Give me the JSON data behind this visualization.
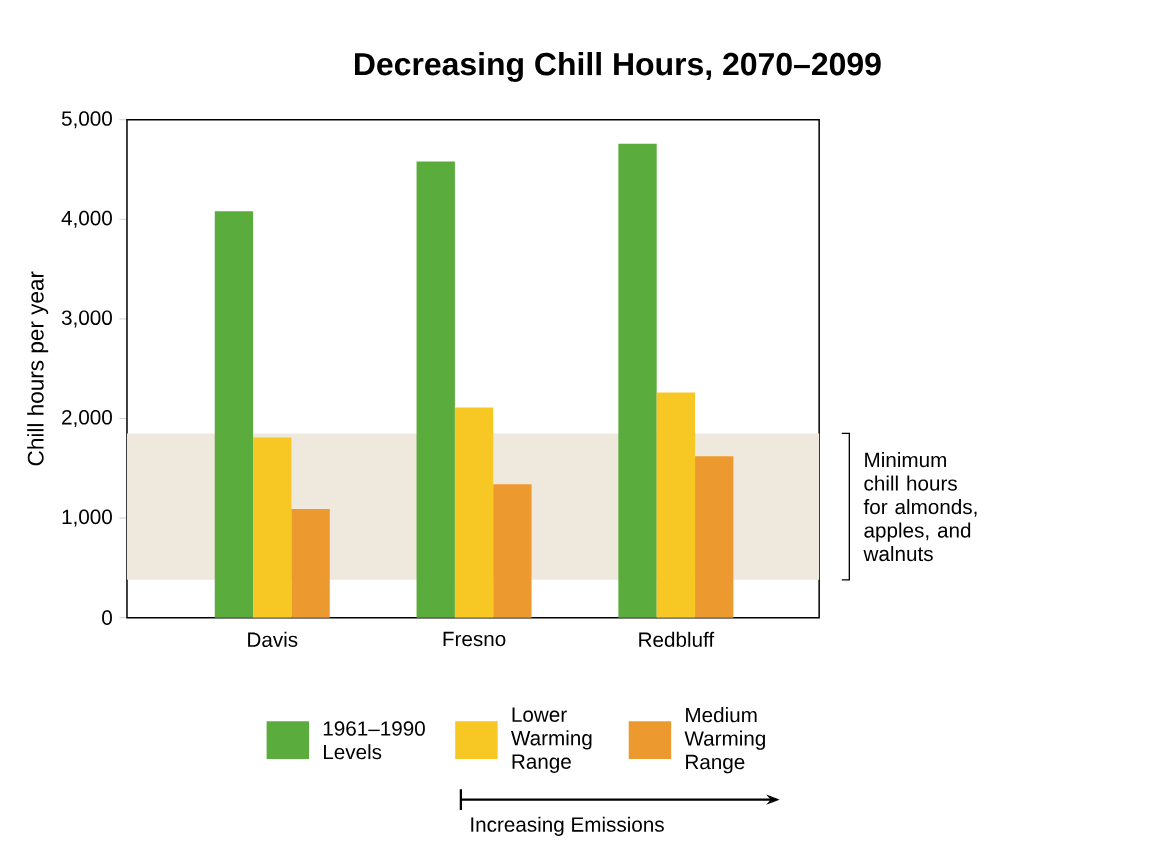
{
  "chart_data": {
    "type": "bar",
    "title": "Decreasing Chill Hours, 2070–2099",
    "ylabel": "Chill hours per year",
    "categories": [
      "Davis",
      "Fresno",
      "Redbluff"
    ],
    "series": [
      {
        "name": "1961–1990 Levels",
        "color": "#5aac3c",
        "values": [
          4080,
          4580,
          4760
        ]
      },
      {
        "name": "Lower Warming Range",
        "color": "#f7c823",
        "values": [
          1810,
          2110,
          2260
        ]
      },
      {
        "name": "Medium Warming Range",
        "color": "#ec9a30",
        "values": [
          1090,
          1340,
          1620
        ]
      }
    ],
    "ylim": [
      0,
      5000
    ],
    "yticks": [
      0,
      {
        "value": 1000,
        "label": "1,000"
      },
      {
        "value": 2000,
        "label": "2,000"
      },
      {
        "value": 3000,
        "label": "3,000"
      },
      {
        "value": 4000,
        "label": "4,000"
      },
      {
        "value": 5000,
        "label": "5,000"
      }
    ],
    "bands": [
      {
        "axis": "y",
        "from": 380,
        "to": 1850,
        "label": "Minimum chill hours for almonds, apples, and walnuts",
        "color": "#efe8dc"
      }
    ],
    "annotations": [
      "Increasing Emissions"
    ],
    "legend": "bottom",
    "grid": false
  }
}
